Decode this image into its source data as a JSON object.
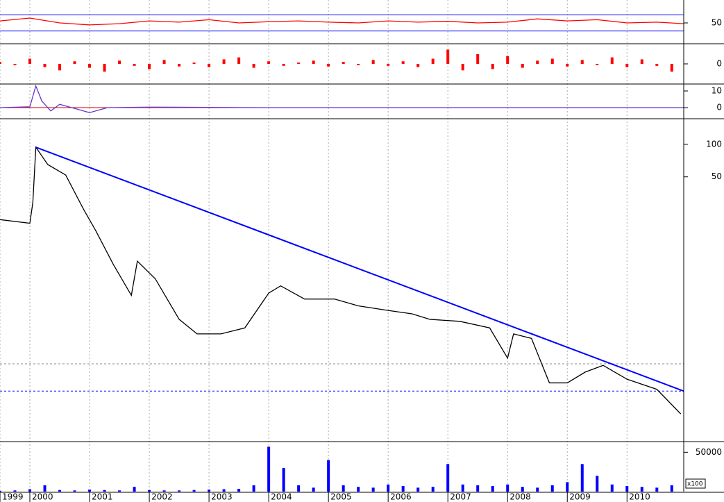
{
  "chart_data": [
    {
      "type": "line",
      "x": [
        1999.5,
        2000,
        2000.5,
        2001,
        2001.5,
        2002,
        2002.5,
        2003,
        2003.5,
        2004,
        2004.5,
        2005,
        2005.5,
        2006,
        2006.5,
        2007,
        2007.5,
        2008,
        2008.5,
        2009,
        2009.5,
        2010,
        2010.5,
        2010.95
      ],
      "series": [
        {
          "color": "#ff0000",
          "values": [
            55,
            62,
            50,
            45,
            48,
            55,
            52,
            58,
            50,
            53,
            55,
            52,
            50,
            55,
            52,
            54,
            50,
            52,
            60,
            55,
            58,
            50,
            52,
            48
          ]
        }
      ],
      "ylim": [
        0,
        100
      ],
      "yticks": [
        50
      ],
      "hlines": [
        70,
        30
      ],
      "hline_color": "#0000ff",
      "hline_dash": false
    },
    {
      "type": "bar",
      "x": [
        1999.5,
        1999.75,
        2000,
        2000.25,
        2000.5,
        2000.75,
        2001,
        2001.25,
        2001.5,
        2001.75,
        2002,
        2002.25,
        2002.5,
        2002.75,
        2003,
        2003.25,
        2003.5,
        2003.75,
        2004,
        2004.25,
        2004.5,
        2004.75,
        2005,
        2005.25,
        2005.5,
        2005.75,
        2006,
        2006.25,
        2006.5,
        2006.75,
        2007,
        2007.25,
        2007.5,
        2007.75,
        2008,
        2008.25,
        2008.5,
        2008.75,
        2009,
        2009.25,
        2009.5,
        2009.75,
        2010,
        2010.25,
        2010.5,
        2010.75
      ],
      "series": [
        {
          "color": "#ff0000",
          "values": [
            3,
            -2,
            8,
            -5,
            -10,
            4,
            -6,
            -12,
            5,
            -3,
            -8,
            6,
            -4,
            2,
            -5,
            7,
            10,
            -6,
            4,
            -3,
            2,
            5,
            -4,
            3,
            -2,
            6,
            -3,
            4,
            -5,
            8,
            22,
            -10,
            15,
            -8,
            12,
            -6,
            5,
            8,
            -4,
            6,
            -2,
            10,
            -5,
            7,
            -3,
            -12
          ]
        }
      ],
      "ylim": [
        -30,
        30
      ],
      "yticks": [
        0
      ]
    },
    {
      "type": "line",
      "x": [
        1999.5,
        2000,
        2000.1,
        2000.2,
        2000.35,
        2000.5,
        2000.8,
        2001,
        2001.3,
        2002,
        2004,
        2010.95
      ],
      "series": [
        {
          "color": "#6633cc",
          "values": [
            0,
            0.5,
            13,
            4,
            -2,
            2,
            -1,
            -3,
            0,
            0.3,
            0,
            0
          ]
        }
      ],
      "ylim": [
        -6.25,
        13.75
      ],
      "yticks": [
        0,
        10
      ],
      "hlines": [
        0
      ],
      "hline_color": "#cc0000",
      "hline_dash": false
    },
    {
      "type": "line",
      "log_scale": true,
      "x": [
        1999.5,
        2000,
        2000.05,
        2000.1,
        2000.3,
        2000.6,
        2000.9,
        2001.1,
        2001.4,
        2001.7,
        2001.8,
        2002.1,
        2002.5,
        2002.8,
        2003.2,
        2003.6,
        2004,
        2004.2,
        2004.6,
        2005.1,
        2005.5,
        2006,
        2006.4,
        2006.7,
        2007.2,
        2007.7,
        2008,
        2008.1,
        2008.4,
        2008.7,
        2009,
        2009.3,
        2009.6,
        2010,
        2010.5,
        2010.9
      ],
      "series": [
        {
          "color": "#000000",
          "values": [
            20.1,
            18.6,
            29,
            94,
            65,
            52,
            25,
            16,
            7.7,
            4,
            8.3,
            5.7,
            2.4,
            1.76,
            1.76,
            2,
            4.2,
            4.9,
            3.7,
            3.7,
            3.2,
            2.9,
            2.7,
            2.4,
            2.3,
            2,
            1.05,
            1.76,
            1.6,
            0.62,
            0.62,
            0.78,
            0.9,
            0.67,
            0.54,
            0.32
          ]
        },
        {
          "color": "#0000ff",
          "x": [
            2000.1,
            2010.95
          ],
          "values": [
            94,
            0.52
          ]
        }
      ],
      "ylim": [
        0.18,
        170
      ],
      "yticks": [
        50,
        100
      ],
      "hlines": [
        0.93,
        0.52
      ],
      "hline_color": "#0000ff",
      "hline_dash": true
    },
    {
      "type": "bar",
      "x": [
        1999.5,
        1999.75,
        2000,
        2000.25,
        2000.5,
        2000.75,
        2001,
        2001.25,
        2001.5,
        2001.75,
        2002,
        2002.25,
        2002.5,
        2002.75,
        2003,
        2003.25,
        2003.5,
        2003.75,
        2004,
        2004.25,
        2004.5,
        2004.75,
        2005,
        2005.25,
        2005.5,
        2005.75,
        2006,
        2006.25,
        2006.5,
        2006.75,
        2007,
        2007.25,
        2007.5,
        2007.75,
        2008,
        2008.25,
        2008.5,
        2008.75,
        2009,
        2009.25,
        2009.5,
        2009.75,
        2010,
        2010.25,
        2010.5,
        2010.75
      ],
      "series": [
        {
          "color": "#0000ff",
          "values": [
            1000,
            1500,
            3000,
            8000,
            2000,
            1500,
            2500,
            2000,
            1500,
            6000,
            2000,
            1500,
            1500,
            2000,
            2500,
            3000,
            3500,
            8000,
            57000,
            30000,
            8000,
            5000,
            40000,
            8000,
            6000,
            5000,
            9000,
            7000,
            5000,
            6000,
            35000,
            9000,
            8000,
            7000,
            9000,
            6000,
            5000,
            8000,
            12000,
            35000,
            20000,
            9000,
            7000,
            6000,
            5000,
            8000
          ]
        }
      ],
      "ylim": [
        0,
        60000
      ],
      "yticks": [
        50000
      ],
      "unit_label": "x100",
      "xlim": [
        1999.5,
        2010.95
      ],
      "xticks": [
        {
          "value": 1999.5,
          "label": "1999"
        },
        2000,
        2001,
        2002,
        2003,
        2004,
        2005,
        2006,
        2007,
        2008,
        2009,
        2010
      ]
    }
  ]
}
